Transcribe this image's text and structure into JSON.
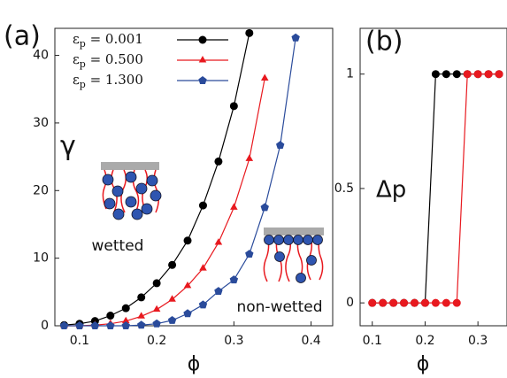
{
  "chart_data": [
    {
      "type": "line",
      "panel_label": "(a)",
      "xlabel": "ϕ",
      "ylabel": "γ",
      "annotations": [
        "wetted",
        "non-wetted"
      ],
      "xlim": [
        0.068,
        0.428
      ],
      "xticks": [
        0.1,
        0.2,
        0.3,
        0.4
      ],
      "ylim": [
        0,
        44
      ],
      "yticks": [
        0,
        10,
        20,
        30,
        40
      ],
      "x": [
        0.08,
        0.1,
        0.12,
        0.14,
        0.16,
        0.18,
        0.2,
        0.22,
        0.24,
        0.26,
        0.28,
        0.3,
        0.32,
        0.34,
        0.36,
        0.38
      ],
      "series": [
        {
          "name": "εp = 0.001",
          "color": "#000000",
          "marker": "circle",
          "values": [
            0.1,
            0.3,
            0.7,
            1.5,
            2.6,
            4.2,
            6.3,
            9.0,
            12.6,
            17.8,
            24.3,
            32.5,
            43.3,
            null,
            null,
            null
          ]
        },
        {
          "name": "εp = 0.500",
          "color": "#e8191f",
          "marker": "triangle",
          "values": [
            0,
            0,
            0.1,
            0.3,
            0.7,
            1.4,
            2.4,
            3.9,
            5.9,
            8.5,
            12.3,
            17.5,
            24.7,
            36.6,
            null,
            null
          ]
        },
        {
          "name": "εp = 1.300",
          "color": "#2a4b9b",
          "marker": "pentagon",
          "values": [
            0,
            0,
            0,
            0,
            0,
            0.1,
            0.3,
            0.8,
            1.8,
            3.1,
            5.1,
            6.8,
            10.6,
            17.5,
            26.7,
            42.6
          ]
        }
      ]
    },
    {
      "type": "line",
      "panel_label": "(b)",
      "xlabel": "ϕ",
      "ylabel": "Δp",
      "xlim": [
        0.077,
        0.355
      ],
      "xticks": [
        0.1,
        0.2,
        0.3
      ],
      "ylim": [
        -0.1,
        1.2
      ],
      "yticks": [
        0,
        0.5,
        1
      ],
      "x": [
        0.1,
        0.12,
        0.14,
        0.16,
        0.18,
        0.2,
        0.22,
        0.24,
        0.26,
        0.28,
        0.3,
        0.32,
        0.34
      ],
      "series": [
        {
          "color": "#000000",
          "marker": "circle",
          "values": [
            0,
            0,
            0,
            0,
            0,
            0,
            1,
            1,
            1,
            1,
            1,
            1,
            1
          ]
        },
        {
          "color": "#e8191f",
          "marker": "circle",
          "values": [
            0,
            0,
            0,
            0,
            0,
            0,
            0,
            0,
            0,
            1,
            1,
            1,
            1
          ]
        }
      ]
    }
  ]
}
